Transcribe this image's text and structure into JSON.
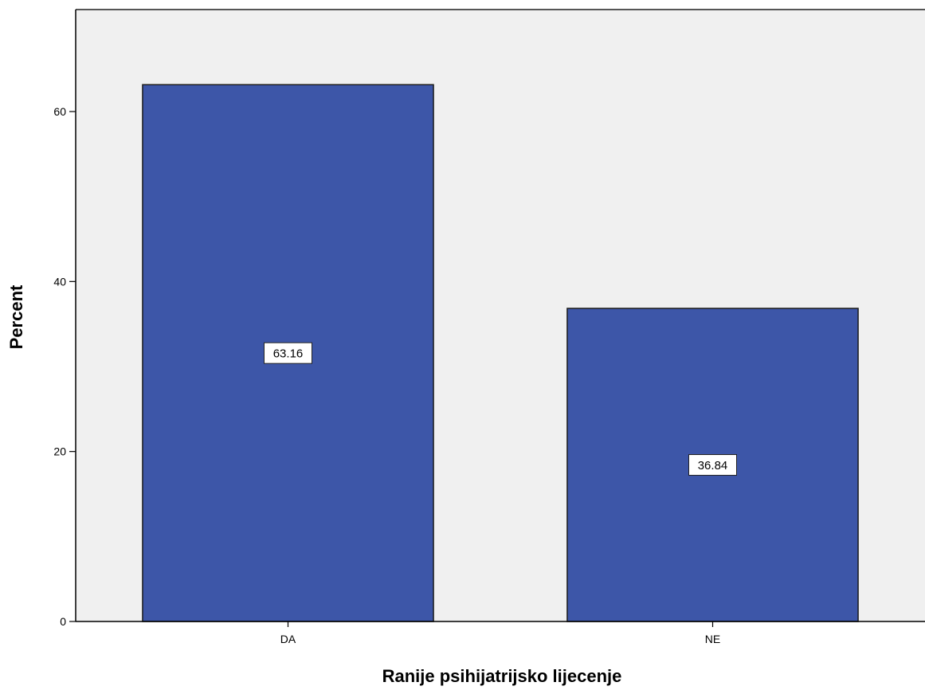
{
  "chart_data": {
    "type": "bar",
    "categories": [
      "DA",
      "NE"
    ],
    "values": [
      63.16,
      36.84
    ],
    "data_labels": [
      "63.16",
      "36.84"
    ],
    "title": "",
    "xlabel": "Ranije psihijatrijsko lijecenje",
    "ylabel": "Percent",
    "ylim": [
      0,
      72
    ],
    "yticks": [
      0,
      20,
      40,
      60
    ],
    "ytick_labels": [
      "0",
      "20",
      "40",
      "60"
    ],
    "grid": false,
    "colors": {
      "bar_fill": "#3d56a8",
      "bar_stroke": "#1a1a1a",
      "plot_background": "#f0f0f0",
      "axis": "#000000",
      "label_box_fill": "#ffffff"
    }
  }
}
